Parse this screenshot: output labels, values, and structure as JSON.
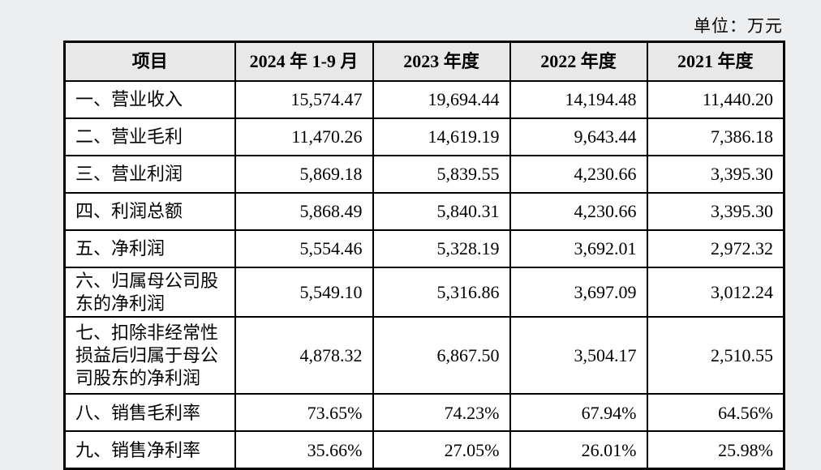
{
  "unit_label": "单位：万元",
  "colors": {
    "page_bg": "#edeef0",
    "header_bg": "#e8e8e8",
    "cell_bg": "#ffffff",
    "border": "#000000",
    "text": "#000000"
  },
  "table": {
    "columns": [
      "项目",
      "2024 年 1-9 月",
      "2023 年度",
      "2022 年度",
      "2021 年度"
    ],
    "rows": [
      {
        "label": "一、营业收入",
        "values": [
          "15,574.47",
          "19,694.44",
          "14,194.48",
          "11,440.20"
        ]
      },
      {
        "label": "二、营业毛利",
        "values": [
          "11,470.26",
          "14,619.19",
          "9,643.44",
          "7,386.18"
        ]
      },
      {
        "label": "三、营业利润",
        "values": [
          "5,869.18",
          "5,839.55",
          "4,230.66",
          "3,395.30"
        ]
      },
      {
        "label": "四、利润总额",
        "values": [
          "5,868.49",
          "5,840.31",
          "4,230.66",
          "3,395.30"
        ]
      },
      {
        "label": "五、净利润",
        "values": [
          "5,554.46",
          "5,328.19",
          "3,692.01",
          "2,972.32"
        ]
      },
      {
        "label": "六、归属母公司股东的净利润",
        "values": [
          "5,549.10",
          "5,316.86",
          "3,697.09",
          "3,012.24"
        ]
      },
      {
        "label": "七、扣除非经常性损益后归属于母公司股东的净利润",
        "values": [
          "4,878.32",
          "6,867.50",
          "3,504.17",
          "2,510.55"
        ]
      },
      {
        "label": "八、销售毛利率",
        "values": [
          "73.65%",
          "74.23%",
          "67.94%",
          "64.56%"
        ]
      },
      {
        "label": "九、销售净利率",
        "values": [
          "35.66%",
          "27.05%",
          "26.01%",
          "25.98%"
        ]
      }
    ]
  }
}
